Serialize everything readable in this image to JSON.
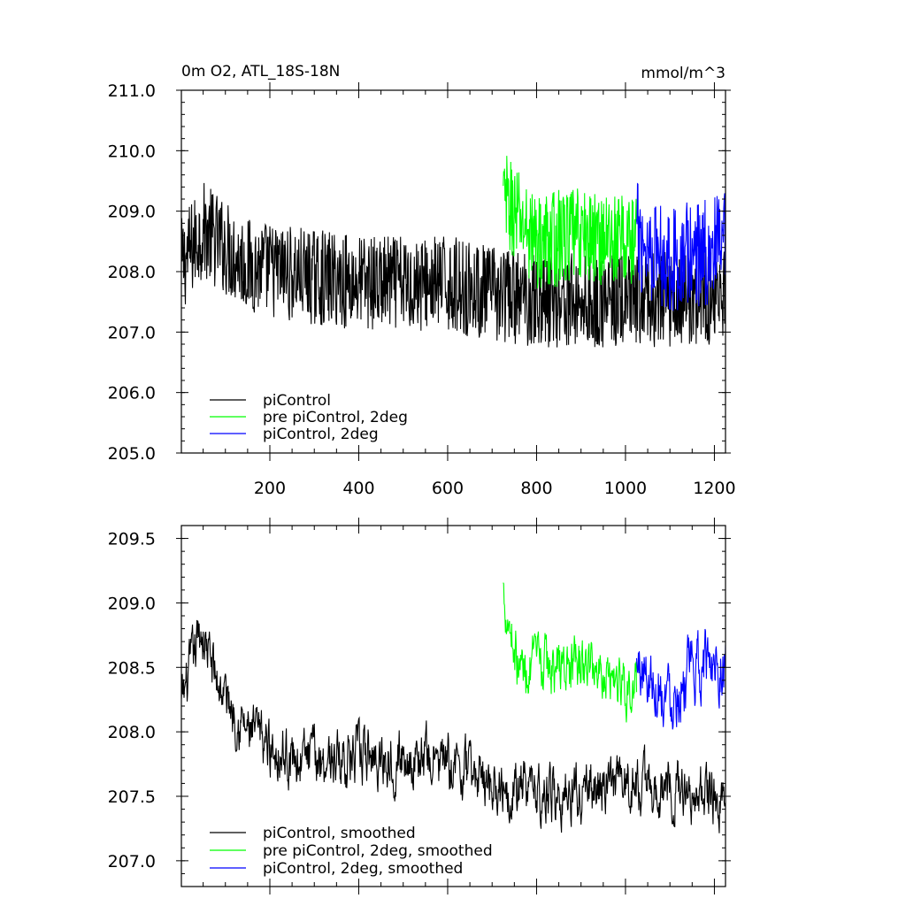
{
  "chart_data": [
    {
      "type": "line",
      "title": "0m O2, ATL_18S-18N",
      "units": "mmol/m^3",
      "xlim": [
        1,
        1225
      ],
      "ylim": [
        205.0,
        211.0
      ],
      "y_ticks": [
        205.0,
        206.0,
        207.0,
        208.0,
        209.0,
        210.0,
        211.0
      ],
      "y_tick_labels": [
        "205.0",
        "206.0",
        "207.0",
        "208.0",
        "209.0",
        "210.0",
        "211.0"
      ],
      "x_ticks": [
        200,
        400,
        600,
        800,
        1000,
        1200
      ],
      "x_tick_labels": [
        "200",
        "400",
        "600",
        "800",
        "1000",
        "1200"
      ],
      "legend_position": "bottom-left",
      "series": [
        {
          "name": "piControl",
          "color": "#000000",
          "x_start": 1,
          "x_end": 1225,
          "mean": 207.95,
          "amplitude": 0.8,
          "anchors": [
            [
              1,
              208.1
            ],
            [
              50,
              208.7
            ],
            [
              150,
              208.1
            ],
            [
              300,
              207.9
            ],
            [
              450,
              207.8
            ],
            [
              600,
              207.8
            ],
            [
              720,
              207.6
            ],
            [
              900,
              207.5
            ],
            [
              1050,
              207.5
            ],
            [
              1225,
              207.6
            ]
          ]
        },
        {
          "name": "pre piControl, 2deg",
          "color": "#00ff00",
          "x_start": 725,
          "x_end": 1025,
          "mean": 208.6,
          "amplitude": 0.8,
          "anchors": [
            [
              725,
              209.2
            ],
            [
              800,
              208.5
            ],
            [
              900,
              208.6
            ],
            [
              1025,
              208.5
            ]
          ]
        },
        {
          "name": "piControl, 2deg",
          "color": "#0000ff",
          "x_start": 1025,
          "x_end": 1225,
          "mean": 208.3,
          "amplitude": 0.9,
          "anchors": [
            [
              1025,
              208.6
            ],
            [
              1100,
              208.2
            ],
            [
              1225,
              208.4
            ]
          ]
        }
      ]
    },
    {
      "type": "line",
      "title": "",
      "xlim": [
        1,
        1225
      ],
      "ylim": [
        206.8,
        209.6
      ],
      "y_ticks": [
        207.0,
        207.5,
        208.0,
        208.5,
        209.0,
        209.5
      ],
      "y_tick_labels": [
        "207.0",
        "207.5",
        "208.0",
        "208.5",
        "209.0",
        "209.5"
      ],
      "x_ticks": [
        200,
        400,
        600,
        800,
        1000,
        1200
      ],
      "x_tick_labels": [],
      "legend_position": "bottom-left",
      "series": [
        {
          "name": "piControl, smoothed",
          "color": "#000000",
          "x_start": 1,
          "x_end": 1225,
          "mean": 207.9,
          "amplitude": 0.3,
          "anchors": [
            [
              1,
              208.2
            ],
            [
              45,
              208.8
            ],
            [
              80,
              208.4
            ],
            [
              150,
              208.0
            ],
            [
              250,
              207.8
            ],
            [
              400,
              207.8
            ],
            [
              550,
              207.8
            ],
            [
              720,
              207.6
            ],
            [
              850,
              207.5
            ],
            [
              1000,
              207.6
            ],
            [
              1225,
              207.5
            ]
          ]
        },
        {
          "name": "pre piControl, 2deg, smoothed",
          "color": "#00ff00",
          "x_start": 725,
          "x_end": 1025,
          "mean": 208.5,
          "amplitude": 0.3,
          "anchors": [
            [
              725,
              209.1
            ],
            [
              760,
              208.5
            ],
            [
              850,
              208.5
            ],
            [
              950,
              208.5
            ],
            [
              1025,
              208.3
            ]
          ]
        },
        {
          "name": "piControl, 2deg, smoothed",
          "color": "#0000ff",
          "x_start": 1025,
          "x_end": 1225,
          "mean": 208.3,
          "amplitude": 0.35,
          "anchors": [
            [
              1025,
              208.5
            ],
            [
              1100,
              208.3
            ],
            [
              1200,
              208.6
            ],
            [
              1225,
              208.5
            ]
          ]
        }
      ]
    }
  ]
}
